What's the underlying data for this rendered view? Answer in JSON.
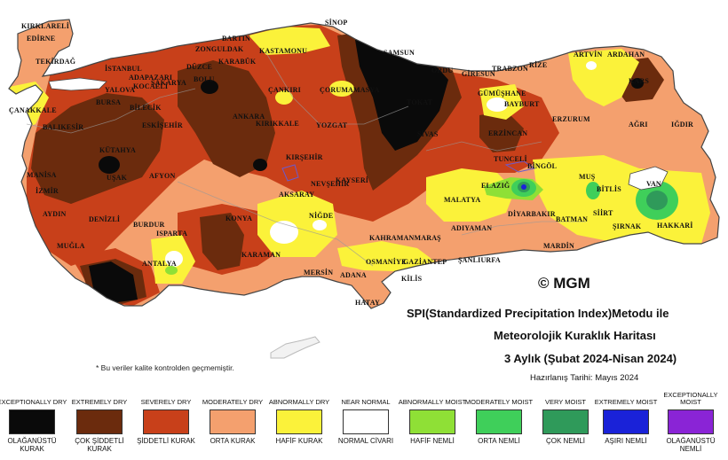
{
  "map": {
    "cities": [
      "KIRKLARELİ",
      "EDİRNE",
      "TEKİRDAĞ",
      "ÇANAKKALE",
      "BALIKESİR",
      "İSTANBUL",
      "YALOVA",
      "KOCAELİ",
      "BURSA",
      "BİLECİK",
      "SAKARYA",
      "ADAPAZARI",
      "DÜZCE",
      "BOLU",
      "ESKİŞEHİR",
      "KÜTAHYA",
      "MANİSA",
      "İZMİR",
      "UŞAK",
      "AYDIN",
      "DENİZLİ",
      "MUĞLA",
      "AFYON",
      "BURDUR",
      "ISPARTA",
      "ANTALYA",
      "KONYA",
      "KARAMAN",
      "MERSİN",
      "ADANA",
      "OSMANİYE",
      "HATAY",
      "KİLİS",
      "GAZİANTEP",
      "ŞANLIURFA",
      "ADIYAMAN",
      "KAHRAMANMARAŞ",
      "MALATYA",
      "ELAZIĞ",
      "DİYARBAKIR",
      "BATMAN",
      "MARDİN",
      "SİİRT",
      "ŞIRNAK",
      "HAKKARİ",
      "VAN",
      "BİTLİS",
      "MUŞ",
      "BİNGÖL",
      "TUNCELİ",
      "ERZİNCAN",
      "ERZURUM",
      "AĞRI",
      "IĞDIR",
      "KARS",
      "ARDAHAN",
      "ARTVİN",
      "RİZE",
      "TRABZON",
      "GİRESUN",
      "ORDU",
      "SAMSUN",
      "SİNOP",
      "KASTAMONU",
      "BARTIN",
      "ZONGULDAK",
      "KARABÜK",
      "ÇANKIRI",
      "ÇORUM",
      "AMASYA",
      "TOKAT",
      "SİVAS",
      "YOZGAT",
      "KIRIKKALE",
      "ANKARA",
      "KIRŞEHİR",
      "NEVŞEHİR",
      "AKSARAY",
      "NİĞDE",
      "KAYSERİ",
      "BAYBURT",
      "GÜMÜŞHANE"
    ],
    "watermark": "© MGM"
  },
  "title": {
    "line1": "SPI(Standardized Precipitation Index)Metodu ile",
    "line2": "Meteorolojik Kuraklık Haritası",
    "line3": "3 Aylık (Şubat 2024-Nisan 2024)",
    "prepared": "Hazırlanış Tarihi: Mayıs 2024"
  },
  "note": "* Bu veriler kalite kontrolden geçmemiştir.",
  "legend": [
    {
      "en": "EXCEPTIONALLY DRY",
      "tr": "OLAĞANÜSTÜ KURAK",
      "color": "#0a0a0a"
    },
    {
      "en": "EXTREMELY DRY",
      "tr": "ÇOK ŞİDDETLİ KURAK",
      "color": "#6b2b0d"
    },
    {
      "en": "SEVERELY DRY",
      "tr": "ŞİDDETLİ KURAK",
      "color": "#c8401a"
    },
    {
      "en": "MODERATELY DRY",
      "tr": "ORTA KURAK",
      "color": "#f4a06e"
    },
    {
      "en": "ABNORMALLY DRY",
      "tr": "HAFİF KURAK",
      "color": "#fbf23a"
    },
    {
      "en": "NEAR NORMAL",
      "tr": "NORMAL CİVARI",
      "color": "#ffffff"
    },
    {
      "en": "ABNORMALLY MOIST",
      "tr": "HAFİF NEMLİ",
      "color": "#8fe036"
    },
    {
      "en": "MODERATELY MOIST",
      "tr": "ORTA NEMLİ",
      "color": "#3fcf5a"
    },
    {
      "en": "VERY MOIST",
      "tr": "ÇOK NEMLİ",
      "color": "#2f9a5a"
    },
    {
      "en": "EXTREMELY MOIST",
      "tr": "AŞIRI NEMLİ",
      "color": "#1a22d8"
    },
    {
      "en": "EXCEPTIONALLY MOIST",
      "tr": "OLAĞANÜSTÜ NEMLİ",
      "color": "#8a24d6"
    }
  ]
}
